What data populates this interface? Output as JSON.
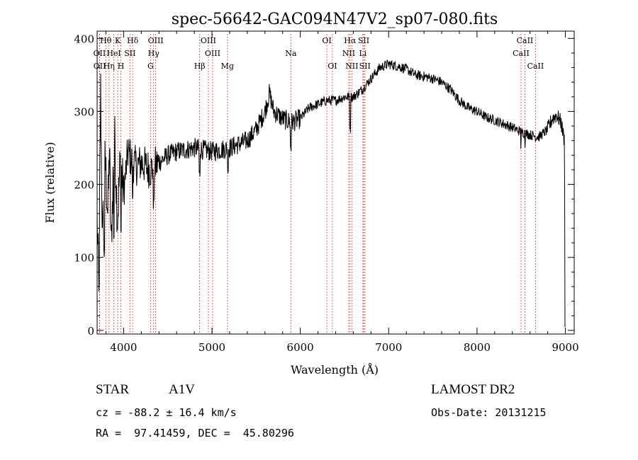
{
  "chart_data": {
    "type": "line",
    "title": "spec-56642-GAC094N47V2_sp07-080.fits",
    "xlabel": "Wavelength (Å)",
    "ylabel": "Flux (relative)",
    "xlim": [
      3700,
      9100
    ],
    "ylim": [
      -5,
      410
    ],
    "xticks": [
      4000,
      5000,
      6000,
      7000,
      8000,
      9000
    ],
    "yticks": [
      0,
      100,
      200,
      300,
      400
    ],
    "grid": false,
    "spectrum_anchors": [
      [
        3700,
        150
      ],
      [
        3720,
        60
      ],
      [
        3740,
        330
      ],
      [
        3760,
        120
      ],
      [
        3790,
        240
      ],
      [
        3820,
        160
      ],
      [
        3840,
        250
      ],
      [
        3860,
        110
      ],
      [
        3880,
        210
      ],
      [
        3900,
        260
      ],
      [
        3930,
        150
      ],
      [
        3960,
        230
      ],
      [
        4000,
        190
      ],
      [
        4050,
        245
      ],
      [
        4100,
        230
      ],
      [
        4150,
        225
      ],
      [
        4200,
        230
      ],
      [
        4300,
        220
      ],
      [
        4400,
        230
      ],
      [
        4500,
        240
      ],
      [
        4600,
        245
      ],
      [
        4800,
        250
      ],
      [
        5000,
        245
      ],
      [
        5200,
        250
      ],
      [
        5400,
        260
      ],
      [
        5500,
        275
      ],
      [
        5600,
        300
      ],
      [
        5650,
        325
      ],
      [
        5700,
        300
      ],
      [
        5800,
        290
      ],
      [
        5900,
        285
      ],
      [
        6000,
        290
      ],
      [
        6100,
        305
      ],
      [
        6200,
        310
      ],
      [
        6300,
        315
      ],
      [
        6400,
        315
      ],
      [
        6500,
        320
      ],
      [
        6600,
        320
      ],
      [
        6700,
        330
      ],
      [
        6800,
        345
      ],
      [
        6900,
        360
      ],
      [
        7000,
        365
      ],
      [
        7100,
        362
      ],
      [
        7200,
        358
      ],
      [
        7300,
        350
      ],
      [
        7400,
        348
      ],
      [
        7500,
        345
      ],
      [
        7600,
        340
      ],
      [
        7700,
        330
      ],
      [
        7800,
        315
      ],
      [
        7900,
        305
      ],
      [
        8000,
        300
      ],
      [
        8100,
        292
      ],
      [
        8200,
        288
      ],
      [
        8300,
        283
      ],
      [
        8400,
        278
      ],
      [
        8500,
        272
      ],
      [
        8600,
        268
      ],
      [
        8700,
        265
      ],
      [
        8800,
        275
      ],
      [
        8850,
        290
      ],
      [
        8900,
        295
      ],
      [
        8950,
        285
      ],
      [
        8990,
        260
      ],
      [
        9000,
        5
      ]
    ],
    "spectrum_dips": [
      [
        3722,
        50
      ],
      [
        3780,
        95
      ],
      [
        3890,
        120
      ],
      [
        3970,
        125
      ],
      [
        4102,
        175
      ],
      [
        4340,
        160
      ],
      [
        4861,
        205
      ],
      [
        5180,
        210
      ],
      [
        5893,
        240
      ],
      [
        6563,
        265
      ],
      [
        8498,
        245
      ],
      [
        8542,
        250
      ],
      [
        8662,
        255
      ]
    ],
    "line_markers": [
      {
        "label": "Hθ",
        "wavelength": 3798,
        "row": 1
      },
      {
        "label": "K",
        "wavelength": 3934,
        "row": 1
      },
      {
        "label": "Hδ",
        "wavelength": 4102,
        "row": 1
      },
      {
        "label": "OIII",
        "wavelength": 4363,
        "row": 1
      },
      {
        "label": "OIII",
        "wavelength": 4959,
        "row": 1
      },
      {
        "label": "OI",
        "wavelength": 6300,
        "row": 1
      },
      {
        "label": "Hα",
        "wavelength": 6563,
        "row": 1
      },
      {
        "label": "SII",
        "wavelength": 6717,
        "row": 1
      },
      {
        "label": "CaII",
        "wavelength": 8542,
        "row": 1
      },
      {
        "label": "OII",
        "wavelength": 3727,
        "row": 2
      },
      {
        "label": "HeI",
        "wavelength": 3889,
        "row": 2
      },
      {
        "label": "SII",
        "wavelength": 4072,
        "row": 2
      },
      {
        "label": "Hγ",
        "wavelength": 4340,
        "row": 2
      },
      {
        "label": "OIII",
        "wavelength": 5007,
        "row": 2
      },
      {
        "label": "Na",
        "wavelength": 5893,
        "row": 2
      },
      {
        "label": "NII",
        "wavelength": 6548,
        "row": 2
      },
      {
        "label": "Li",
        "wavelength": 6708,
        "row": 2
      },
      {
        "label": "CaII",
        "wavelength": 8498,
        "row": 2
      },
      {
        "label": "OII",
        "wavelength": 3729,
        "row": 3
      },
      {
        "label": "Hη",
        "wavelength": 3835,
        "row": 3
      },
      {
        "label": "H",
        "wavelength": 3969,
        "row": 3
      },
      {
        "label": "G",
        "wavelength": 4305,
        "row": 3
      },
      {
        "label": "Hβ",
        "wavelength": 4861,
        "row": 3
      },
      {
        "label": "Mg",
        "wavelength": 5175,
        "row": 3
      },
      {
        "label": "OI",
        "wavelength": 6363,
        "row": 3
      },
      {
        "label": "NII",
        "wavelength": 6583,
        "row": 3
      },
      {
        "label": "SII",
        "wavelength": 6731,
        "row": 3
      },
      {
        "label": "CaII",
        "wavelength": 8662,
        "row": 3
      }
    ]
  },
  "info": {
    "object_class": "STAR",
    "subclass": "A1V",
    "survey": "LAMOST DR2",
    "redshift": "cz = -88.2 ± 16.4 km/s",
    "obs_date": "Obs-Date: 20131215",
    "coords": "RA =  97.41459, DEC =  45.80296"
  },
  "colors": {
    "spectrum": "#000000",
    "line_marker": "#cc0000",
    "axes": "#000000"
  }
}
